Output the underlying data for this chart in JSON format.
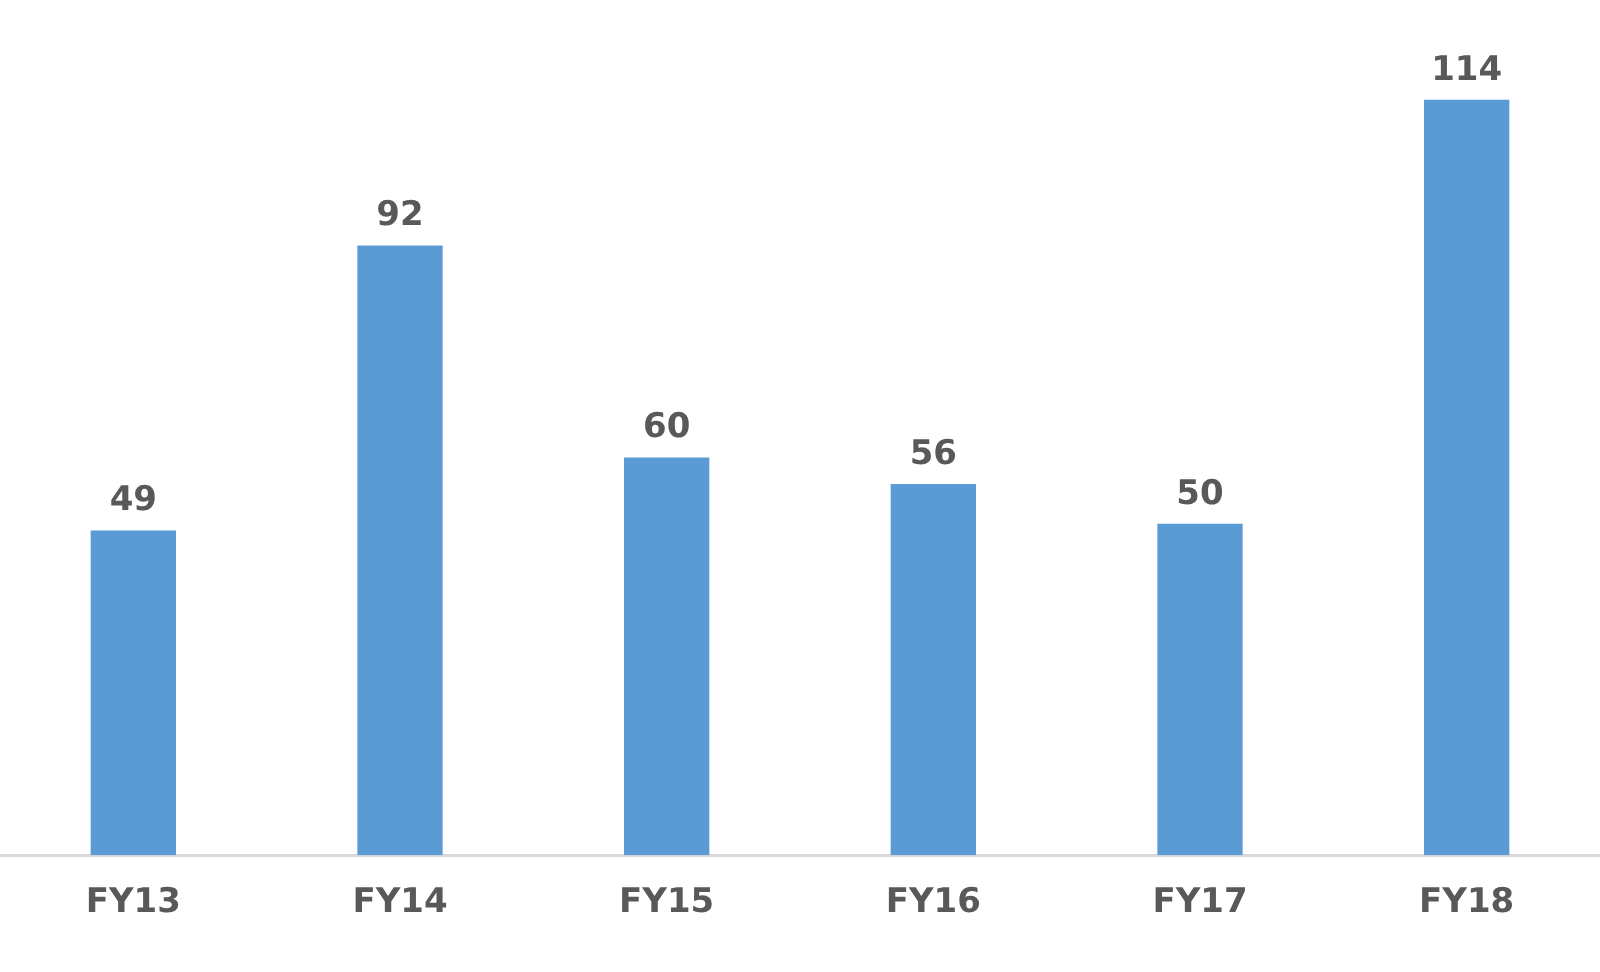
{
  "chart_data": {
    "type": "bar",
    "categories": [
      "FY13",
      "FY14",
      "FY15",
      "FY16",
      "FY17",
      "FY18"
    ],
    "values": [
      49,
      92,
      60,
      56,
      50,
      114
    ],
    "color": "#5b9bd5",
    "data_labels": true,
    "grid": false,
    "legend": false,
    "tick_labels": "x"
  }
}
